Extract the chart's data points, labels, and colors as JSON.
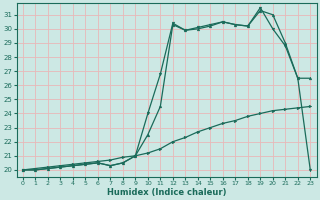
{
  "xlabel": "Humidex (Indice chaleur)",
  "ylabel": "",
  "bg_color": "#cce8e4",
  "grid_color": "#b0d4d0",
  "line_color": "#1a6b5a",
  "xlim": [
    -0.5,
    23.5
  ],
  "ylim": [
    19.5,
    31.8
  ],
  "xticks": [
    0,
    1,
    2,
    3,
    4,
    5,
    6,
    7,
    8,
    9,
    10,
    11,
    12,
    13,
    14,
    15,
    16,
    17,
    18,
    19,
    20,
    21,
    22,
    23
  ],
  "yticks": [
    20,
    21,
    22,
    23,
    24,
    25,
    26,
    27,
    28,
    29,
    30,
    31
  ],
  "line1_x": [
    0,
    1,
    2,
    3,
    4,
    5,
    6,
    7,
    8,
    9,
    10,
    11,
    12,
    13,
    14,
    15,
    16,
    17,
    18,
    19,
    20,
    21,
    22,
    23
  ],
  "line1_y": [
    20.0,
    20.1,
    20.2,
    20.3,
    20.4,
    20.5,
    20.6,
    20.7,
    20.9,
    21.0,
    21.2,
    21.5,
    22.0,
    22.3,
    22.7,
    23.0,
    23.3,
    23.5,
    23.8,
    24.0,
    24.2,
    24.3,
    24.4,
    24.5
  ],
  "line2_x": [
    0,
    1,
    2,
    3,
    4,
    5,
    6,
    7,
    8,
    9,
    10,
    11,
    12,
    13,
    14,
    15,
    16,
    17,
    18,
    19,
    20,
    21,
    22,
    23
  ],
  "line2_y": [
    20.0,
    20.0,
    20.1,
    20.2,
    20.3,
    20.4,
    20.5,
    20.3,
    20.5,
    21.0,
    22.5,
    24.5,
    30.3,
    29.9,
    30.0,
    30.2,
    30.5,
    30.3,
    30.2,
    31.3,
    31.0,
    29.0,
    26.5,
    26.5
  ],
  "line3_x": [
    0,
    1,
    2,
    3,
    4,
    5,
    6,
    7,
    8,
    9,
    10,
    11,
    12,
    13,
    14,
    15,
    16,
    17,
    18,
    19,
    20,
    21,
    22,
    23
  ],
  "line3_y": [
    20.0,
    20.0,
    20.1,
    20.2,
    20.3,
    20.4,
    20.5,
    20.3,
    20.5,
    21.0,
    24.0,
    26.8,
    30.4,
    29.9,
    30.1,
    30.3,
    30.5,
    30.3,
    30.2,
    31.5,
    30.0,
    28.8,
    26.5,
    20.0
  ]
}
